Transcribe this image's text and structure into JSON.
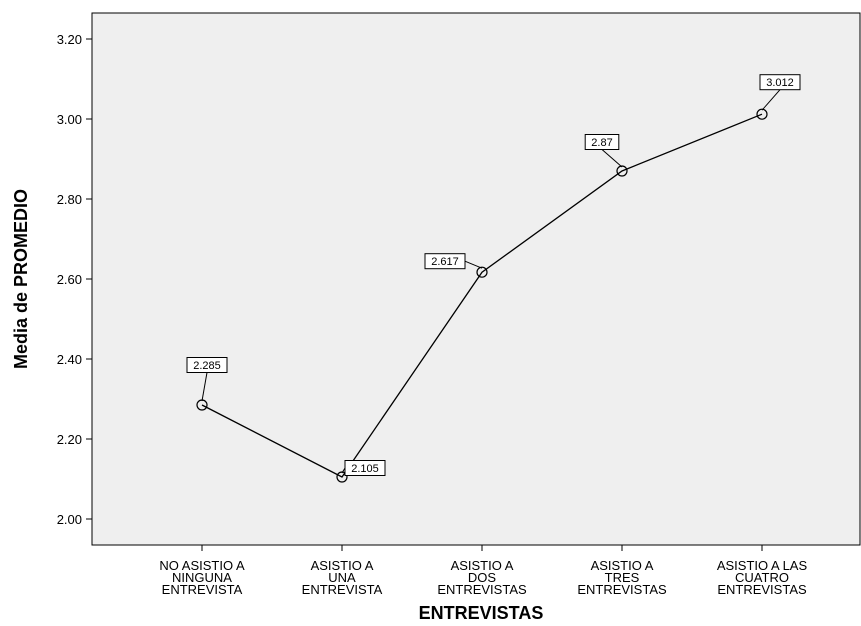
{
  "chart_data": {
    "type": "line",
    "xlabel": "ENTREVISTAS",
    "ylabel": "Media de PROMEDIO",
    "ylim": [
      1.97,
      3.27
    ],
    "yticks": [
      "2.00",
      "2.20",
      "2.40",
      "2.60",
      "2.80",
      "3.00",
      "3.20"
    ],
    "ytick_values": [
      2.0,
      2.2,
      2.4,
      2.6,
      2.8,
      3.0,
      3.2
    ],
    "categories": [
      [
        "NO ASISTIO A",
        "NINGUNA",
        "ENTREVISTA"
      ],
      [
        "ASISTIO A",
        "UNA",
        "ENTREVISTA"
      ],
      [
        "ASISTIO A",
        "DOS",
        "ENTREVISTAS"
      ],
      [
        "ASISTIO A",
        "TRES",
        "ENTREVISTAS"
      ],
      [
        "ASISTIO A LAS",
        "CUATRO",
        "ENTREVISTAS"
      ]
    ],
    "values": [
      2.285,
      2.105,
      2.617,
      2.87,
      3.012
    ],
    "data_labels": [
      "2.285",
      "2.105",
      "2.617",
      "2.87",
      "3.012"
    ],
    "grid": false,
    "legend": "none",
    "colors": {
      "plot_background": "#efefef",
      "line": "#000000",
      "marker": "#000000"
    }
  }
}
